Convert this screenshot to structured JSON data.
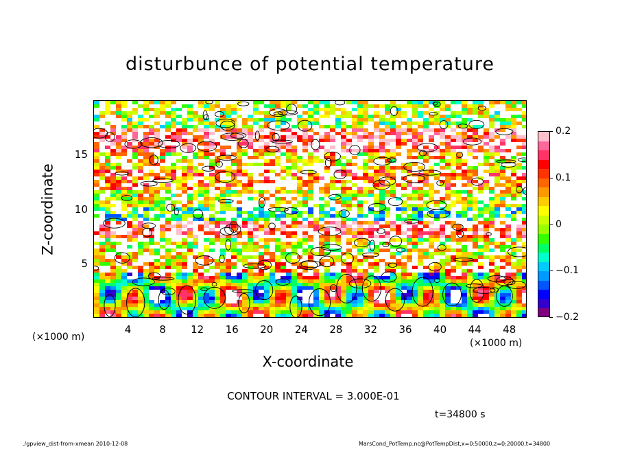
{
  "chart_data": {
    "type": "heatmap",
    "title": "disturbunce of potential temperature",
    "xlabel": "X-coordinate",
    "ylabel": "Z-coordinate",
    "x_unit": "(×1000 m)",
    "y_unit": "(×1000 m)",
    "xlim": [
      0,
      50
    ],
    "ylim": [
      0,
      20
    ],
    "x_ticks": [
      "4",
      "8",
      "12",
      "16",
      "20",
      "24",
      "28",
      "32",
      "36",
      "40",
      "44",
      "48"
    ],
    "y_ticks": [
      "5",
      "10",
      "15"
    ],
    "colorbar": {
      "range": [
        -0.2,
        0.2
      ],
      "labels": [
        "0.2",
        "0.1",
        "0",
        "−0.1",
        "−0.2"
      ],
      "colors": [
        "#800080",
        "#3300cc",
        "#0000ff",
        "#0055ff",
        "#0099ff",
        "#00ccff",
        "#00ffcc",
        "#00ff66",
        "#33ff00",
        "#99ff00",
        "#ccff00",
        "#ffff00",
        "#ffcc00",
        "#ff9900",
        "#ff6600",
        "#ff3300",
        "#ff0000",
        "#ff3366",
        "#ff6699",
        "#ffc0cb"
      ]
    },
    "contour_interval": "CONTOUR INTERVAL = 3.000E-01"
  },
  "time_label": "t=34800 s",
  "footer": {
    "left": "./gpview_dist-from-xmean   2010-12-08",
    "right": "MarsCond_PotTemp.nc@PotTempDist,x=0:50000,z=0:20000,t=34800"
  }
}
